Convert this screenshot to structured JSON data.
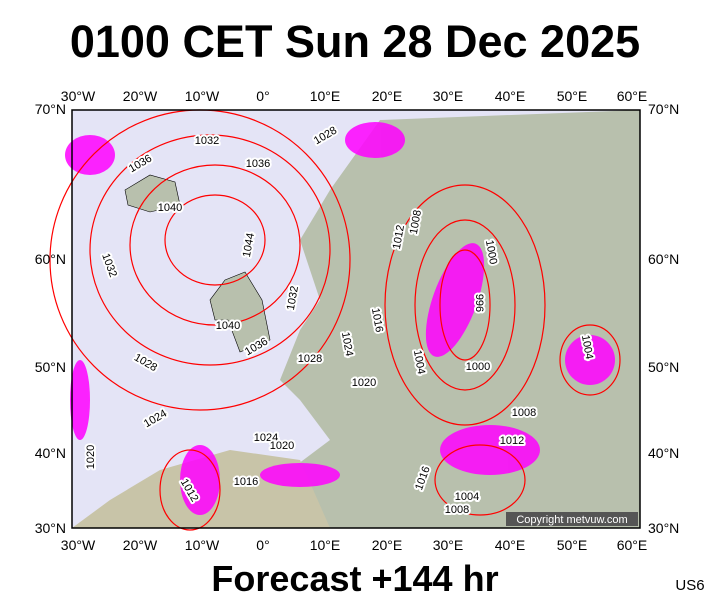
{
  "header": {
    "title": "0100 CET Sun 28 Dec 2025"
  },
  "map": {
    "lon_ticks": [
      "30°W",
      "20°W",
      "10°W",
      "0°",
      "10°E",
      "20°E",
      "30°E",
      "40°E",
      "50°E",
      "60°E"
    ],
    "lat_ticks": [
      "70°N",
      "60°N",
      "50°N",
      "40°N",
      "30°N"
    ],
    "isobar_labels": [
      1032,
      1028,
      1036,
      1036,
      1040,
      1044,
      1032,
      1040,
      1036,
      1032,
      1028,
      1028,
      1024,
      1016,
      1012,
      1008,
      1000,
      996,
      1004,
      1000,
      1020,
      1004,
      1008,
      1012,
      1024,
      1024,
      1020,
      1020,
      1016,
      1012,
      1016,
      1004,
      1008
    ],
    "copyright": "Copyright metvuw.com"
  },
  "footer": {
    "forecast": "Forecast +144 hr",
    "code": "US6"
  }
}
